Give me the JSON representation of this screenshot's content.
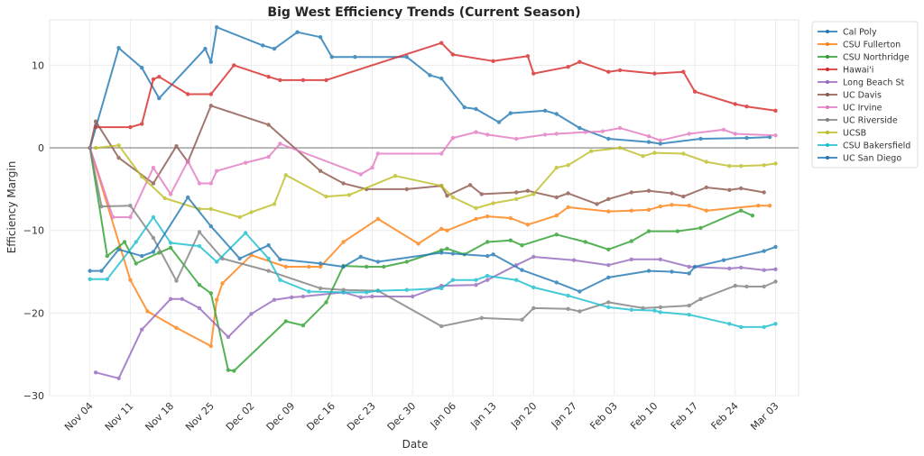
{
  "chart_data": {
    "type": "line",
    "title": "Big West Efficiency Trends (Current Season)",
    "xlabel": "Date",
    "ylabel": "Efficiency Margin",
    "x_start_date": "Nov 04",
    "x_unit": "days since Nov 04",
    "xlim": [
      -7,
      123
    ],
    "ylim": [
      -30,
      15.5
    ],
    "yticks": [
      10,
      0,
      -10,
      -20,
      -30
    ],
    "ytick_labels": [
      "10",
      "0",
      "−10",
      "−20",
      "−30"
    ],
    "xticks": [
      0,
      7,
      14,
      21,
      28,
      35,
      42,
      49,
      56,
      63,
      70,
      77,
      84,
      91,
      98,
      105,
      112,
      119
    ],
    "xtick_labels": [
      "Nov 04",
      "Nov 11",
      "Nov 18",
      "Nov 25",
      "Dec 02",
      "Dec 09",
      "Dec 16",
      "Dec 23",
      "Dec 30",
      "Jan 06",
      "Jan 13",
      "Jan 20",
      "Jan 27",
      "Feb 03",
      "Feb 10",
      "Feb 17",
      "Feb 24",
      "Mar 03"
    ],
    "grid": true,
    "zero_line": true,
    "legend_position": "outside-top-right",
    "series": [
      {
        "name": "Cal Poly",
        "color": "#1f77b4",
        "x": [
          0,
          5,
          9,
          12,
          20,
          21,
          22,
          30,
          32,
          36,
          40,
          42,
          46,
          55,
          59,
          61,
          65,
          67,
          71,
          73,
          79,
          81,
          85,
          90,
          97,
          99,
          106,
          114,
          118
        ],
        "y": [
          0,
          12.1,
          9.7,
          6.0,
          12.0,
          10.4,
          14.6,
          12.4,
          12.0,
          14.0,
          13.4,
          11.0,
          11.0,
          11.0,
          8.8,
          8.4,
          4.9,
          4.7,
          3.1,
          4.2,
          4.5,
          4.1,
          2.4,
          1.1,
          0.7,
          0.5,
          1.1,
          1.2,
          1.3
        ]
      },
      {
        "name": "CSU Fullerton",
        "color": "#ff7f0e",
        "x": [
          0,
          7,
          10,
          15,
          21,
          22,
          23,
          28,
          34,
          38,
          40,
          44,
          50,
          57,
          61,
          62,
          67,
          69,
          73,
          76,
          81,
          83,
          90,
          94,
          97,
          99,
          101,
          104,
          107,
          116,
          118
        ],
        "y": [
          0,
          -16.0,
          -19.8,
          -21.8,
          -24.0,
          -18.4,
          -16.4,
          -13.0,
          -14.4,
          -14.4,
          -14.4,
          -11.4,
          -8.6,
          -11.6,
          -9.8,
          -10.0,
          -8.6,
          -8.3,
          -8.5,
          -9.3,
          -8.2,
          -7.2,
          -7.7,
          -7.6,
          -7.5,
          -7.1,
          -6.9,
          -7.0,
          -7.6,
          -7.0,
          -7.0
        ]
      },
      {
        "name": "CSU Northridge",
        "color": "#2ca02c",
        "x": [
          0,
          3,
          6,
          8,
          12,
          14,
          19,
          21,
          24,
          25,
          34,
          37,
          41,
          44,
          48,
          51,
          55,
          61,
          62,
          65,
          69,
          73,
          75,
          81,
          86,
          90,
          94,
          97,
          102,
          106,
          113,
          115
        ],
        "y": [
          0,
          -13.1,
          -11.4,
          -14.0,
          -12.7,
          -12.1,
          -16.6,
          -17.6,
          -26.9,
          -27.0,
          -21.0,
          -21.5,
          -18.7,
          -14.3,
          -14.4,
          -14.4,
          -13.8,
          -12.4,
          -12.2,
          -12.9,
          -11.4,
          -11.2,
          -11.8,
          -10.5,
          -11.4,
          -12.3,
          -11.3,
          -10.1,
          -10.1,
          -9.7,
          -7.6,
          -8.2
        ]
      },
      {
        "name": "Hawai'i",
        "color": "#d62728",
        "x": [
          1,
          7,
          9,
          11,
          12,
          17,
          21,
          25,
          31,
          33,
          37,
          41,
          61,
          63,
          70,
          76,
          77,
          83,
          85,
          90,
          92,
          98,
          103,
          105,
          112,
          114,
          119
        ],
        "y": [
          2.5,
          2.5,
          2.9,
          8.3,
          8.6,
          6.5,
          6.5,
          10.0,
          8.6,
          8.2,
          8.2,
          8.2,
          12.7,
          11.3,
          10.5,
          11.1,
          9.0,
          9.8,
          10.4,
          9.2,
          9.4,
          9.0,
          9.2,
          6.8,
          5.3,
          5.0,
          4.5
        ]
      },
      {
        "name": "Long Beach St",
        "color": "#9467bd",
        "x": [
          1,
          5,
          9,
          14,
          16,
          19,
          24,
          28,
          32,
          35,
          37,
          44,
          47,
          49,
          56,
          61,
          67,
          69,
          74,
          77,
          84,
          90,
          94,
          99,
          104,
          111,
          113,
          117,
          119
        ],
        "y": [
          -27.2,
          -27.9,
          -22.0,
          -18.3,
          -18.3,
          -19.4,
          -22.9,
          -20.1,
          -18.4,
          -18.1,
          -18.0,
          -17.5,
          -18.1,
          -18.0,
          -18.0,
          -16.7,
          -16.6,
          -16.0,
          -14.2,
          -13.2,
          -13.6,
          -14.2,
          -13.5,
          -13.5,
          -14.4,
          -14.6,
          -14.5,
          -14.8,
          -14.7
        ]
      },
      {
        "name": "UC Davis",
        "color": "#8c564b",
        "x": [
          0,
          1,
          5,
          11,
          15,
          17,
          21,
          31,
          40,
          44,
          48,
          55,
          61,
          62,
          66,
          68,
          74,
          76,
          81,
          83,
          88,
          90,
          94,
          97,
          101,
          103,
          107,
          111,
          113,
          117
        ],
        "y": [
          0,
          3.2,
          -1.2,
          -4.3,
          0.2,
          -1.7,
          5.1,
          2.8,
          -2.8,
          -4.3,
          -5.0,
          -5.0,
          -4.6,
          -5.8,
          -4.5,
          -5.6,
          -5.4,
          -5.2,
          -6.0,
          -5.5,
          -6.8,
          -6.2,
          -5.4,
          -5.2,
          -5.5,
          -5.9,
          -4.8,
          -5.1,
          -4.9,
          -5.4
        ]
      },
      {
        "name": "UC Irvine",
        "color": "#e377c2",
        "x": [
          0,
          4,
          7,
          11,
          14,
          17,
          19,
          21,
          22,
          27,
          31,
          33,
          47,
          49,
          50,
          61,
          63,
          67,
          69,
          74,
          79,
          81,
          86,
          89,
          92,
          97,
          99,
          104,
          110,
          112,
          119
        ],
        "y": [
          0,
          -8.4,
          -8.4,
          -2.4,
          -5.6,
          -1.6,
          -4.3,
          -4.3,
          -2.8,
          -1.8,
          -1.1,
          0.5,
          -3.2,
          -2.4,
          -0.7,
          -0.7,
          1.2,
          1.9,
          1.6,
          1.1,
          1.6,
          1.7,
          1.9,
          2.0,
          2.4,
          1.4,
          0.9,
          1.7,
          2.2,
          1.7,
          1.5
        ]
      },
      {
        "name": "UC Riverside",
        "color": "#7f7f7f",
        "x": [
          0,
          2,
          7,
          11,
          15,
          19,
          23,
          31,
          40,
          44,
          50,
          61,
          68,
          75,
          77,
          83,
          85,
          90,
          96,
          99,
          104,
          106,
          112,
          114,
          117,
          119
        ],
        "y": [
          0,
          -7.1,
          -7.0,
          -10.9,
          -16.1,
          -10.2,
          -13.4,
          -14.9,
          -17.0,
          -17.2,
          -17.3,
          -21.6,
          -20.6,
          -20.8,
          -19.4,
          -19.5,
          -19.8,
          -18.7,
          -19.4,
          -19.3,
          -19.1,
          -18.3,
          -16.7,
          -16.8,
          -16.8,
          -16.2
        ]
      },
      {
        "name": "UCSB",
        "color": "#bcbd22",
        "x": [
          1,
          5,
          9,
          13,
          19,
          21,
          26,
          28,
          32,
          34,
          41,
          45,
          53,
          61,
          63,
          67,
          70,
          74,
          77,
          81,
          83,
          87,
          92,
          96,
          98,
          103,
          107,
          111,
          113,
          117,
          119
        ],
        "y": [
          0,
          0.3,
          -3.5,
          -6.1,
          -7.4,
          -7.4,
          -8.4,
          -7.8,
          -6.8,
          -3.3,
          -5.9,
          -5.7,
          -3.4,
          -4.6,
          -6.0,
          -7.3,
          -6.7,
          -6.2,
          -5.6,
          -2.4,
          -2.1,
          -0.4,
          0,
          -1.0,
          -0.6,
          -0.7,
          -1.7,
          -2.2,
          -2.2,
          -2.1,
          -1.9
        ]
      },
      {
        "name": "CSU Bakersfield",
        "color": "#17becf",
        "x": [
          0,
          3,
          8,
          11,
          14,
          19,
          22,
          27,
          31,
          33,
          38,
          44,
          48,
          50,
          55,
          61,
          63,
          67,
          69,
          74,
          77,
          83,
          90,
          94,
          98,
          99,
          104,
          111,
          113,
          117,
          119
        ],
        "y": [
          -15.9,
          -15.9,
          -11.4,
          -8.4,
          -11.5,
          -11.9,
          -13.8,
          -10.3,
          -13.4,
          -16.0,
          -17.4,
          -17.5,
          -17.5,
          -17.3,
          -17.2,
          -17.0,
          -16.0,
          -16.0,
          -15.5,
          -16.0,
          -16.9,
          -17.9,
          -19.3,
          -19.6,
          -19.7,
          -19.9,
          -20.2,
          -21.3,
          -21.7,
          -21.7,
          -21.3
        ]
      },
      {
        "name": "UC San Diego",
        "color": "#1f77b4",
        "x": [
          0,
          2,
          5,
          9,
          11,
          17,
          21,
          26,
          31,
          33,
          40,
          44,
          47,
          50,
          61,
          63,
          69,
          70,
          75,
          81,
          85,
          90,
          97,
          101,
          104,
          105,
          110,
          117,
          119
        ],
        "y": [
          -14.9,
          -14.9,
          -12.3,
          -13.1,
          -12.6,
          -6.0,
          -9.5,
          -13.4,
          -11.8,
          -13.5,
          -14.0,
          -14.4,
          -13.2,
          -13.8,
          -12.7,
          -12.8,
          -13.1,
          -12.9,
          -14.8,
          -16.3,
          -17.4,
          -15.7,
          -14.9,
          -15.0,
          -15.2,
          -14.4,
          -13.6,
          -12.5,
          -12.0
        ]
      }
    ]
  }
}
